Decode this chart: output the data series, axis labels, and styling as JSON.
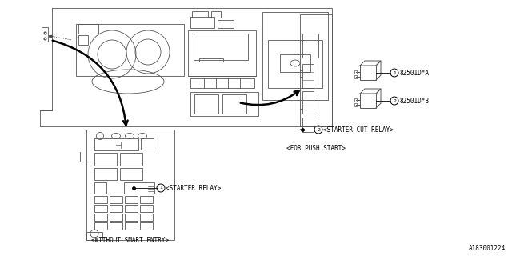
{
  "bg_color": "#ffffff",
  "line_color": "#000000",
  "ec": "#555555",
  "part_number": "A183001224",
  "label_relay1": "82501D*A",
  "label_relay2": "82501D*B",
  "label_starter_relay": "<STARTER RELAY>",
  "label_starter_cut_relay": "<STARTER CUT RELAY>",
  "label_without_smart": "<WITHOUT SMART ENTRY>",
  "label_for_push": "<FOR PUSH START>"
}
